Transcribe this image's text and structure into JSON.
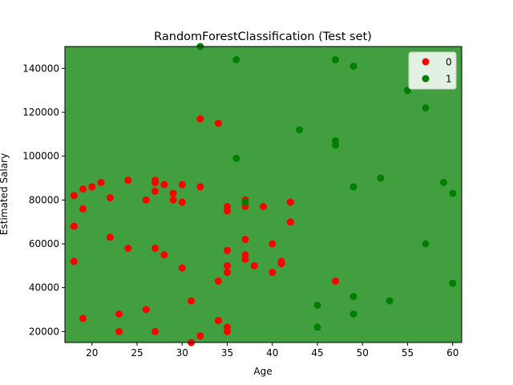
{
  "chart_data": {
    "type": "scatter",
    "title": "RandomForestClassification (Test set)",
    "xlabel": "Age",
    "ylabel": "Estimated Salary",
    "xlim": [
      17,
      61
    ],
    "ylim": [
      15000,
      150000
    ],
    "xticks": [
      20,
      25,
      30,
      35,
      40,
      45,
      50,
      55,
      60
    ],
    "yticks": [
      20000,
      40000,
      60000,
      80000,
      100000,
      120000,
      140000
    ],
    "ytick_labels": [
      "20000",
      "40000",
      "60000",
      "80000",
      "100000",
      "120000",
      "140000"
    ],
    "grid": false,
    "legend": "top-right",
    "background_region": {
      "class": "1",
      "color": "#419f40"
    },
    "series": [
      {
        "name": "0",
        "color": "#ff0000",
        "points": [
          [
            18,
            82000
          ],
          [
            18,
            68000
          ],
          [
            18,
            52000
          ],
          [
            19,
            85000
          ],
          [
            19,
            76000
          ],
          [
            19,
            26000
          ],
          [
            20,
            86000
          ],
          [
            21,
            88000
          ],
          [
            22,
            81000
          ],
          [
            22,
            63000
          ],
          [
            23,
            28000
          ],
          [
            23,
            20000
          ],
          [
            24,
            89000
          ],
          [
            24,
            58000
          ],
          [
            26,
            80000
          ],
          [
            26,
            30000
          ],
          [
            27,
            89000
          ],
          [
            27,
            88000
          ],
          [
            27,
            84000
          ],
          [
            27,
            58000
          ],
          [
            27,
            20000
          ],
          [
            28,
            87000
          ],
          [
            28,
            55000
          ],
          [
            29,
            83000
          ],
          [
            29,
            80000
          ],
          [
            30,
            87000
          ],
          [
            30,
            79000
          ],
          [
            30,
            49000
          ],
          [
            31,
            34000
          ],
          [
            31,
            15000
          ],
          [
            32,
            117000
          ],
          [
            32,
            86000
          ],
          [
            32,
            18000
          ],
          [
            34,
            115000
          ],
          [
            34,
            43000
          ],
          [
            34,
            25000
          ],
          [
            35,
            77000
          ],
          [
            35,
            75000
          ],
          [
            35,
            57000
          ],
          [
            35,
            50000
          ],
          [
            35,
            47000
          ],
          [
            35,
            22000
          ],
          [
            35,
            20000
          ],
          [
            37,
            80000
          ],
          [
            37,
            77000
          ],
          [
            37,
            62000
          ],
          [
            37,
            55000
          ],
          [
            37,
            53000
          ],
          [
            38,
            50000
          ],
          [
            39,
            77000
          ],
          [
            40,
            60000
          ],
          [
            40,
            47000
          ],
          [
            41,
            52000
          ],
          [
            41,
            51000
          ],
          [
            42,
            79000
          ],
          [
            42,
            70000
          ],
          [
            47,
            43000
          ]
        ]
      },
      {
        "name": "1",
        "color": "#007f00",
        "points": [
          [
            32,
            150000
          ],
          [
            36,
            144000
          ],
          [
            36,
            99000
          ],
          [
            37,
            79000
          ],
          [
            43,
            112000
          ],
          [
            45,
            32000
          ],
          [
            45,
            22000
          ],
          [
            47,
            144000
          ],
          [
            47,
            107000
          ],
          [
            47,
            105000
          ],
          [
            49,
            141000
          ],
          [
            49,
            86000
          ],
          [
            49,
            36000
          ],
          [
            49,
            28000
          ],
          [
            52,
            90000
          ],
          [
            53,
            34000
          ],
          [
            55,
            130000
          ],
          [
            57,
            122000
          ],
          [
            57,
            60000
          ],
          [
            59,
            88000
          ],
          [
            60,
            83000
          ],
          [
            60,
            42000
          ]
        ]
      }
    ]
  }
}
